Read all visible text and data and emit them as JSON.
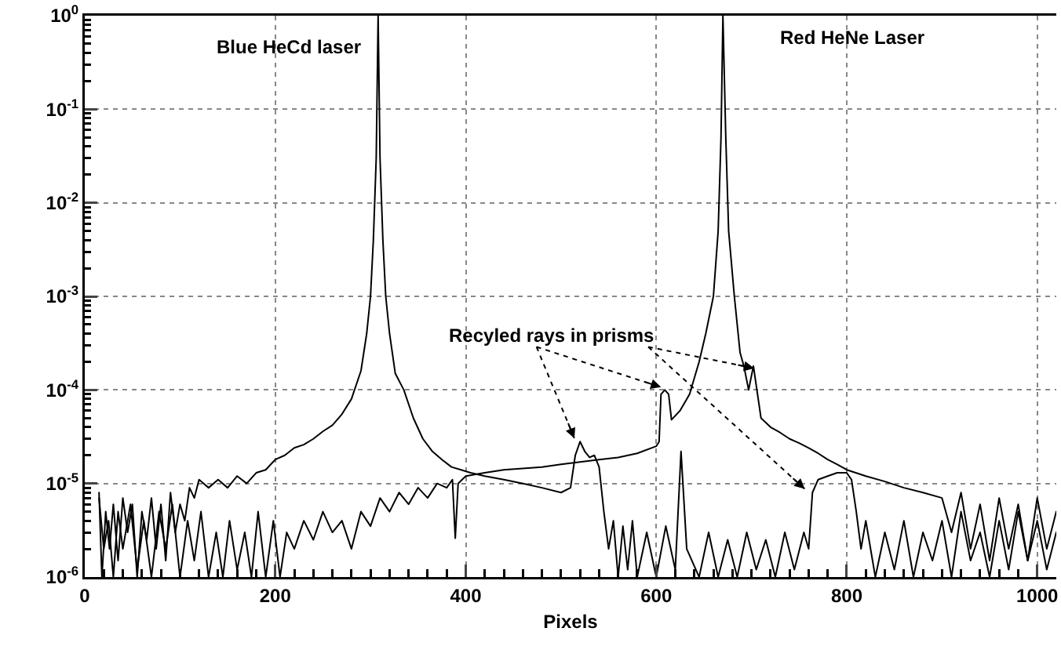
{
  "chart_data": {
    "type": "line",
    "xlabel": "Pixels",
    "log": "y",
    "grid": true,
    "xlim": [
      0,
      1020
    ],
    "xticks": [
      0,
      200,
      400,
      600,
      800,
      1000
    ],
    "ylim": [
      1e-06,
      1
    ],
    "yticks": [
      {
        "value": 1e-06,
        "label": "10$^{-6}$"
      },
      {
        "value": 1e-05,
        "label": "10$^{-5}$"
      },
      {
        "value": 0.0001,
        "label": "10$^{-4}$"
      },
      {
        "value": 0.001,
        "label": "10$^{-3}$"
      },
      {
        "value": 0.01,
        "label": "10$^{-2}$"
      },
      {
        "value": 0.1,
        "label": "10$^{-1}$"
      },
      {
        "value": 1,
        "label": "10$^{0}$"
      }
    ],
    "annotations": [
      "Blue HeCd laser",
      "Red HeNe Laser",
      {
        "text": "Recyled rays in prisms",
        "x": 605,
        "y": 0.000107
      }
    ],
    "series": [
      {
        "color": "#000000",
        "x": [
          15,
          18,
          22,
          26,
          30,
          35,
          40,
          45,
          50,
          55,
          60,
          65,
          70,
          75,
          80,
          85,
          90,
          95,
          100,
          105,
          110,
          115,
          120,
          130,
          140,
          150,
          160,
          170,
          180,
          190,
          200,
          210,
          220,
          230,
          240,
          250,
          260,
          270,
          280,
          290,
          296,
          300,
          303,
          306,
          308,
          310,
          313,
          316,
          320,
          326,
          335,
          345,
          355,
          365,
          375,
          385,
          395,
          405,
          420,
          440,
          460,
          480,
          500,
          510,
          515,
          520,
          525,
          530,
          535,
          540,
          545,
          550,
          555,
          560,
          565,
          570,
          575,
          580,
          590,
          600,
          610,
          620,
          626,
          632,
          645,
          655,
          665,
          675,
          685,
          695,
          705,
          715,
          725,
          735,
          745,
          755,
          760,
          764,
          770,
          780,
          790,
          800,
          805,
          810,
          815,
          820,
          830,
          840,
          850,
          860,
          870,
          880,
          890,
          900,
          910,
          920,
          930,
          940,
          950,
          960,
          970,
          980,
          990,
          1000,
          1010,
          1020
        ],
        "values": [
          8e-06,
          1e-06,
          5e-06,
          2e-06,
          6e-06,
          1.5e-06,
          7e-06,
          3e-06,
          6e-06,
          1e-06,
          5e-06,
          2.5e-06,
          7e-06,
          2e-06,
          6e-06,
          1.5e-06,
          8e-06,
          3e-06,
          6e-06,
          4e-06,
          9e-06,
          7e-06,
          1.1e-05,
          9e-06,
          1.1e-05,
          9e-06,
          1.2e-05,
          1e-05,
          1.3e-05,
          1.4e-05,
          1.8e-05,
          2e-05,
          2.4e-05,
          2.6e-05,
          3e-05,
          3.6e-05,
          4.2e-05,
          5.5e-05,
          8e-05,
          0.00016,
          0.0004,
          0.001,
          0.004,
          0.03,
          1,
          0.03,
          0.004,
          0.001,
          0.0004,
          0.00015,
          0.0001,
          5e-05,
          3e-05,
          2.2e-05,
          1.8e-05,
          1.5e-05,
          1.4e-05,
          1.3e-05,
          1.2e-05,
          1.1e-05,
          1e-05,
          9e-06,
          8e-06,
          9e-06,
          2e-05,
          2.8e-05,
          2.2e-05,
          1.9e-05,
          2e-05,
          1.5e-05,
          5e-06,
          2e-06,
          4e-06,
          1e-06,
          3.5e-06,
          1.2e-06,
          4e-06,
          1e-06,
          3e-06,
          1e-06,
          3.5e-06,
          1.2e-06,
          2.2e-05,
          2e-06,
          1e-06,
          3e-06,
          1e-06,
          2.5e-06,
          1e-06,
          3e-06,
          1.2e-06,
          2.5e-06,
          1e-06,
          3e-06,
          1.2e-06,
          3e-06,
          2e-06,
          8e-06,
          1.1e-05,
          1.2e-05,
          1.3e-05,
          1.3e-05,
          1.1e-05,
          5e-06,
          2e-06,
          4e-06,
          1e-06,
          3e-06,
          1.2e-06,
          4e-06,
          1e-06,
          3e-06,
          1.5e-06,
          4e-06,
          1e-06,
          5e-06,
          1.5e-06,
          3e-06,
          1e-06,
          4e-06,
          1.2e-06,
          5e-06,
          1.5e-06,
          4e-06,
          1.2e-06,
          3e-06
        ]
      },
      {
        "color": "#000000",
        "x": [
          15,
          20,
          25,
          30,
          35,
          40,
          48,
          55,
          62,
          70,
          78,
          85,
          92,
          100,
          108,
          115,
          122,
          130,
          138,
          145,
          152,
          160,
          168,
          175,
          182,
          190,
          198,
          205,
          212,
          220,
          230,
          240,
          250,
          260,
          270,
          280,
          290,
          300,
          310,
          320,
          330,
          340,
          350,
          360,
          370,
          380,
          386,
          389,
          392,
          400,
          420,
          440,
          460,
          480,
          500,
          520,
          540,
          560,
          580,
          600,
          603,
          605,
          609,
          613,
          616,
          625,
          635,
          645,
          652,
          660,
          665,
          668,
          670,
          673,
          676,
          682,
          688,
          692,
          697,
          702,
          710,
          720,
          730,
          740,
          750,
          760,
          770,
          780,
          790,
          800,
          820,
          840,
          860,
          880,
          900,
          910,
          920,
          930,
          940,
          950,
          960,
          970,
          980,
          990,
          1000,
          1010,
          1020
        ],
        "values": [
          7e-06,
          2e-06,
          4e-06,
          1e-06,
          5e-06,
          2e-06,
          6e-06,
          1.2e-06,
          4e-06,
          1e-06,
          5e-06,
          2e-06,
          6e-06,
          1e-06,
          4e-06,
          1.5e-06,
          5e-06,
          1e-06,
          3e-06,
          1e-06,
          4e-06,
          1.2e-06,
          3e-06,
          1e-06,
          5e-06,
          1e-06,
          4e-06,
          1e-06,
          3e-06,
          2e-06,
          4e-06,
          2.5e-06,
          5e-06,
          3e-06,
          4e-06,
          2e-06,
          5e-06,
          3.5e-06,
          7e-06,
          5e-06,
          8e-06,
          6e-06,
          9e-06,
          7e-06,
          1e-05,
          9e-06,
          1.1e-05,
          2.6e-06,
          1e-05,
          1.2e-05,
          1.3e-05,
          1.4e-05,
          1.45e-05,
          1.5e-05,
          1.6e-05,
          1.7e-05,
          1.8e-05,
          1.9e-05,
          2.1e-05,
          2.5e-05,
          2.8e-05,
          9e-05,
          0.0001,
          9e-05,
          4.8e-05,
          6e-05,
          9e-05,
          0.0002,
          0.0004,
          0.001,
          0.005,
          0.05,
          1,
          0.05,
          0.005,
          0.001,
          0.00025,
          0.00018,
          0.0001,
          0.00018,
          5e-05,
          4e-05,
          3.5e-05,
          3e-05,
          2.7e-05,
          2.4e-05,
          2.1e-05,
          1.8e-05,
          1.6e-05,
          1.4e-05,
          1.2e-05,
          1.05e-05,
          9e-06,
          8e-06,
          7e-06,
          3e-06,
          8e-06,
          2e-06,
          6e-06,
          1.5e-06,
          7e-06,
          2e-06,
          6e-06,
          1.5e-06,
          7e-06,
          2e-06,
          5e-06
        ]
      }
    ]
  }
}
